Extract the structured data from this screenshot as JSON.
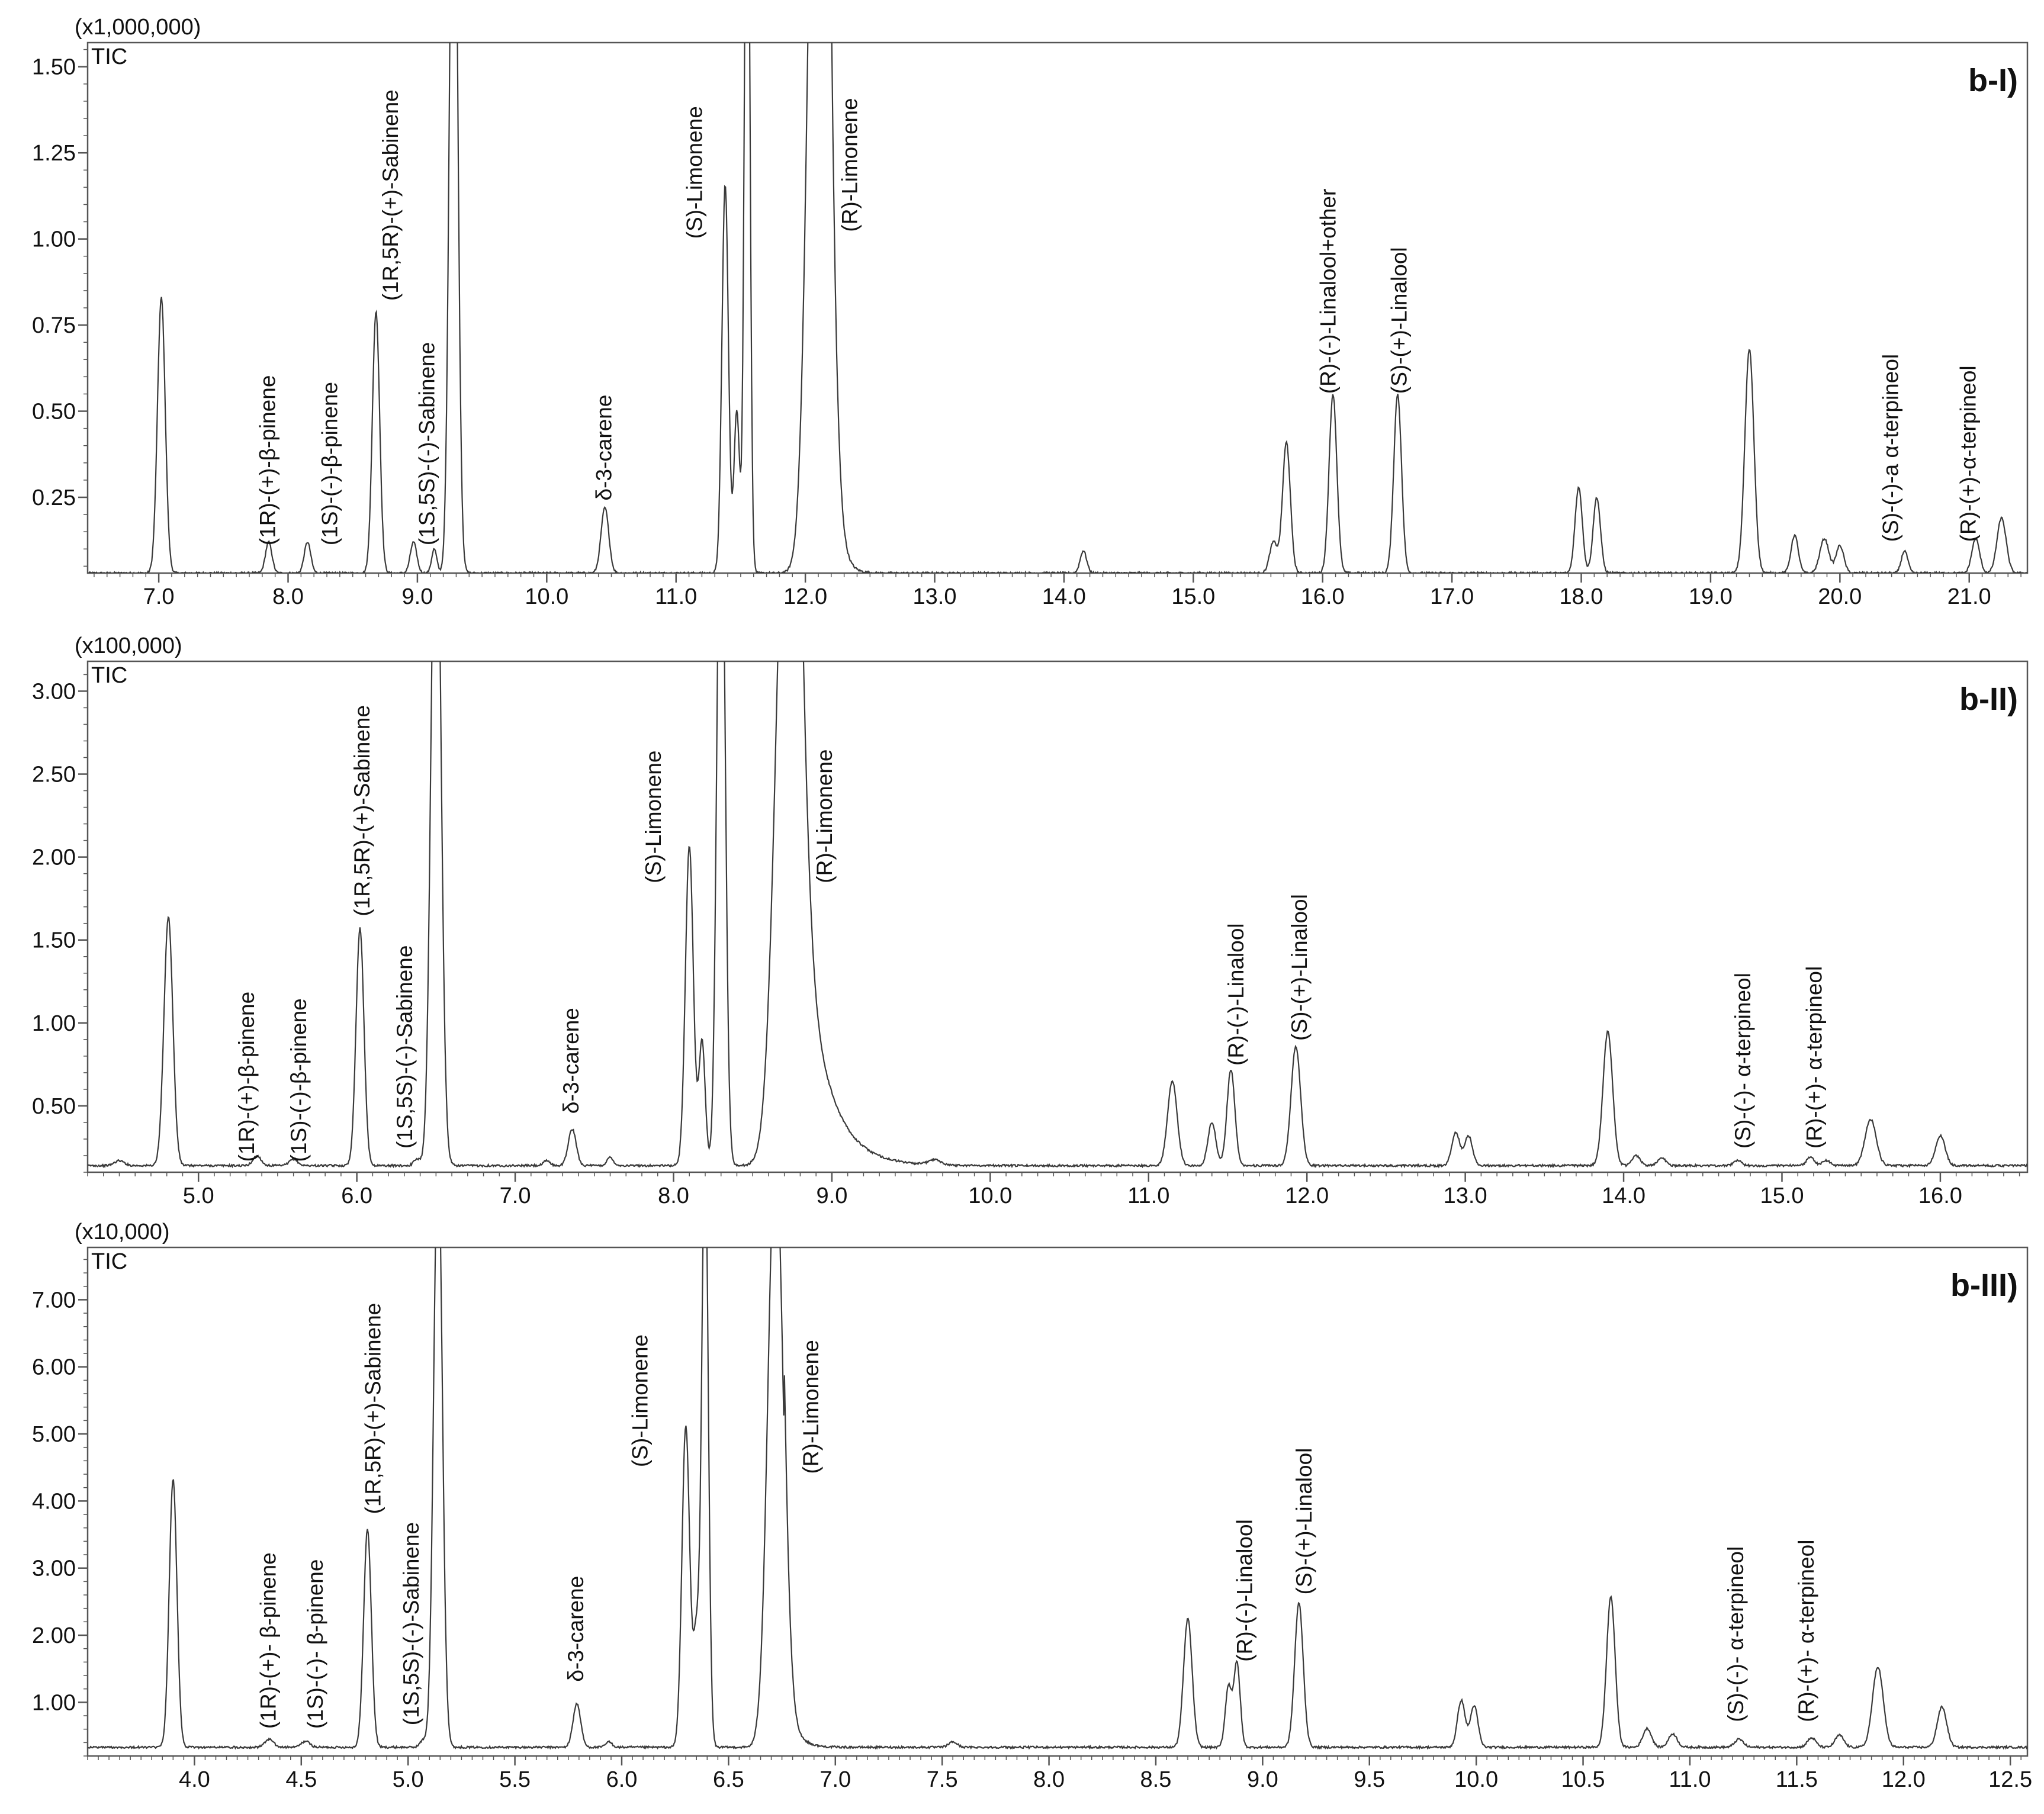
{
  "colors": {
    "trace": "#3a3a3a",
    "axis": "#555555",
    "text": "#111111",
    "background": "#ffffff"
  },
  "chart_data": [
    {
      "type": "line",
      "panel_label": "b-I)",
      "signal_label": "TIC",
      "multiplier_label": "(x1,000,000)",
      "scale": 1000000,
      "xlim": [
        6.45,
        21.45
      ],
      "ylim": [
        0.03,
        1.57
      ],
      "xticks": [
        7.0,
        8.0,
        9.0,
        10.0,
        11.0,
        12.0,
        13.0,
        14.0,
        15.0,
        16.0,
        17.0,
        18.0,
        19.0,
        20.0,
        21.0
      ],
      "yticks": [
        0.25,
        0.5,
        0.75,
        1.0,
        1.25,
        1.5
      ],
      "baseline": 0.03,
      "peaks": [
        {
          "rt": 7.02,
          "h": 0.8,
          "w": 0.03
        },
        {
          "rt": 7.85,
          "h": 0.09,
          "w": 0.025
        },
        {
          "rt": 8.15,
          "h": 0.09,
          "w": 0.025
        },
        {
          "rt": 8.68,
          "h": 0.76,
          "w": 0.028
        },
        {
          "rt": 8.97,
          "h": 0.09,
          "w": 0.025
        },
        {
          "rt": 9.13,
          "h": 0.07,
          "w": 0.02
        },
        {
          "rt": 9.28,
          "h": 2.5,
          "w": 0.03
        },
        {
          "rt": 10.45,
          "h": 0.19,
          "w": 0.03
        },
        {
          "rt": 11.38,
          "h": 1.13,
          "w": 0.025
        },
        {
          "rt": 11.47,
          "h": 0.47,
          "w": 0.022
        },
        {
          "rt": 11.55,
          "h": 2.5,
          "w": 0.02
        },
        {
          "rt": 12.1,
          "h": 3.0,
          "w": 0.07
        },
        {
          "rt": 14.15,
          "h": 0.065,
          "w": 0.025
        },
        {
          "rt": 15.62,
          "h": 0.09,
          "w": 0.03
        },
        {
          "rt": 15.72,
          "h": 0.38,
          "w": 0.03
        },
        {
          "rt": 16.08,
          "h": 0.52,
          "w": 0.03
        },
        {
          "rt": 16.58,
          "h": 0.52,
          "w": 0.03
        },
        {
          "rt": 17.98,
          "h": 0.25,
          "w": 0.028
        },
        {
          "rt": 18.12,
          "h": 0.22,
          "w": 0.028
        },
        {
          "rt": 19.3,
          "h": 0.65,
          "w": 0.035
        },
        {
          "rt": 19.65,
          "h": 0.11,
          "w": 0.028
        },
        {
          "rt": 19.88,
          "h": 0.1,
          "w": 0.035
        },
        {
          "rt": 20.0,
          "h": 0.08,
          "w": 0.03
        },
        {
          "rt": 20.5,
          "h": 0.065,
          "w": 0.025
        },
        {
          "rt": 21.05,
          "h": 0.1,
          "w": 0.03
        },
        {
          "rt": 21.25,
          "h": 0.16,
          "w": 0.035
        }
      ],
      "tail": {
        "rt": 12.18,
        "h": 0.9,
        "decay": 0.05
      },
      "annotations": [
        {
          "text": "(1R)-(+)-β-pinene",
          "rt": 7.9,
          "y": 0.09
        },
        {
          "text": "(1S)-(-)-β-pinene",
          "rt": 8.38,
          "y": 0.09
        },
        {
          "text": "(1R,5R)-(+)-Sabinene",
          "rt": 8.85,
          "y": 0.8
        },
        {
          "text": "(1S,5S)-(-)-Sabinene",
          "rt": 9.13,
          "y": 0.09
        },
        {
          "text": "δ-3-carene",
          "rt": 10.5,
          "y": 0.22
        },
        {
          "text": "(S)-Limonene",
          "rt": 11.2,
          "y": 0.98
        },
        {
          "text": "(R)-Limonene",
          "rt": 12.4,
          "y": 1.0
        },
        {
          "text": "(R)-(-)-Linalool+other",
          "rt": 16.1,
          "y": 0.53
        },
        {
          "text": "(S)-(+)-Linalool",
          "rt": 16.65,
          "y": 0.53
        },
        {
          "text": "(S)-(-)-a α-terpineol",
          "rt": 20.45,
          "y": 0.1
        },
        {
          "text": "(R)-(+)-α-terpineol",
          "rt": 21.05,
          "y": 0.1
        }
      ]
    },
    {
      "type": "line",
      "panel_label": "b-II)",
      "signal_label": "TIC",
      "multiplier_label": "(x100,000)",
      "scale": 100000,
      "xlim": [
        4.3,
        16.55
      ],
      "ylim": [
        0.1,
        3.18
      ],
      "xticks": [
        5.0,
        6.0,
        7.0,
        8.0,
        9.0,
        10.0,
        11.0,
        12.0,
        13.0,
        14.0,
        15.0,
        16.0
      ],
      "yticks": [
        0.5,
        1.0,
        1.5,
        2.0,
        2.5,
        3.0
      ],
      "baseline": 0.14,
      "peaks": [
        {
          "rt": 4.5,
          "h": 0.03,
          "w": 0.03
        },
        {
          "rt": 4.81,
          "h": 1.5,
          "w": 0.028
        },
        {
          "rt": 5.37,
          "h": 0.06,
          "w": 0.025
        },
        {
          "rt": 5.6,
          "h": 0.04,
          "w": 0.025
        },
        {
          "rt": 6.02,
          "h": 1.43,
          "w": 0.025
        },
        {
          "rt": 6.38,
          "h": 0.04,
          "w": 0.02
        },
        {
          "rt": 6.5,
          "h": 4.5,
          "w": 0.03
        },
        {
          "rt": 7.2,
          "h": 0.03,
          "w": 0.02
        },
        {
          "rt": 7.36,
          "h": 0.22,
          "w": 0.025
        },
        {
          "rt": 7.6,
          "h": 0.05,
          "w": 0.02
        },
        {
          "rt": 8.1,
          "h": 1.93,
          "w": 0.025
        },
        {
          "rt": 8.18,
          "h": 0.75,
          "w": 0.02
        },
        {
          "rt": 8.3,
          "h": 4.5,
          "w": 0.025
        },
        {
          "rt": 8.72,
          "h": 4.5,
          "w": 0.07
        },
        {
          "rt": 9.65,
          "h": 0.03,
          "w": 0.04
        },
        {
          "rt": 11.15,
          "h": 0.51,
          "w": 0.03
        },
        {
          "rt": 11.4,
          "h": 0.26,
          "w": 0.025
        },
        {
          "rt": 11.52,
          "h": 0.58,
          "w": 0.025
        },
        {
          "rt": 11.93,
          "h": 0.72,
          "w": 0.03
        },
        {
          "rt": 12.94,
          "h": 0.2,
          "w": 0.025
        },
        {
          "rt": 13.02,
          "h": 0.18,
          "w": 0.025
        },
        {
          "rt": 13.9,
          "h": 0.81,
          "w": 0.03
        },
        {
          "rt": 14.08,
          "h": 0.06,
          "w": 0.025
        },
        {
          "rt": 14.24,
          "h": 0.05,
          "w": 0.025
        },
        {
          "rt": 14.72,
          "h": 0.03,
          "w": 0.025
        },
        {
          "rt": 15.18,
          "h": 0.05,
          "w": 0.025
        },
        {
          "rt": 15.28,
          "h": 0.03,
          "w": 0.025
        },
        {
          "rt": 15.56,
          "h": 0.28,
          "w": 0.035
        },
        {
          "rt": 16.0,
          "h": 0.18,
          "w": 0.03
        }
      ],
      "tail": {
        "rt": 8.78,
        "h": 1.9,
        "decay": 0.15
      },
      "annotations": [
        {
          "text": "(1R)-(+)-β-pinene",
          "rt": 5.35,
          "y": 0.12
        },
        {
          "text": "(1S)-(-)-β-pinene",
          "rt": 5.68,
          "y": 0.12
        },
        {
          "text": "(1R,5R)-(+)-Sabinene",
          "rt": 6.08,
          "y": 1.6
        },
        {
          "text": "(1S,5S)-(-)-Sabinene",
          "rt": 6.35,
          "y": 0.2
        },
        {
          "text": "δ-3-carene",
          "rt": 7.4,
          "y": 0.41
        },
        {
          "text": "(S)-Limonene",
          "rt": 7.92,
          "y": 1.8
        },
        {
          "text": "(R)-Limonene",
          "rt": 9.0,
          "y": 1.8
        },
        {
          "text": "(R)-(-)-Linalool",
          "rt": 11.6,
          "y": 0.7
        },
        {
          "text": "(S)-(+)-Linalool",
          "rt": 12.0,
          "y": 0.85
        },
        {
          "text": "(S)-(-)- α-terpineol",
          "rt": 14.8,
          "y": 0.2
        },
        {
          "text": "(R)-(+)- α-terpineol",
          "rt": 15.25,
          "y": 0.2
        }
      ]
    },
    {
      "type": "line",
      "panel_label": "b-III)",
      "signal_label": "TIC",
      "multiplier_label": "(x10,000)",
      "scale": 10000,
      "xlim": [
        3.5,
        12.58
      ],
      "ylim": [
        0.2,
        7.78
      ],
      "xticks": [
        4.0,
        4.5,
        5.0,
        5.5,
        6.0,
        6.5,
        7.0,
        7.5,
        8.0,
        8.5,
        9.0,
        9.5,
        10.0,
        10.5,
        11.0,
        11.5,
        12.0,
        12.5
      ],
      "yticks": [
        1.0,
        2.0,
        3.0,
        4.0,
        5.0,
        6.0,
        7.0
      ],
      "baseline": 0.33,
      "peaks": [
        {
          "rt": 3.9,
          "h": 4.0,
          "w": 0.018
        },
        {
          "rt": 4.35,
          "h": 0.12,
          "w": 0.02
        },
        {
          "rt": 4.52,
          "h": 0.09,
          "w": 0.02
        },
        {
          "rt": 4.81,
          "h": 3.25,
          "w": 0.018
        },
        {
          "rt": 5.07,
          "h": 0.1,
          "w": 0.015
        },
        {
          "rt": 5.14,
          "h": 9.0,
          "w": 0.02
        },
        {
          "rt": 5.79,
          "h": 0.65,
          "w": 0.018
        },
        {
          "rt": 5.94,
          "h": 0.08,
          "w": 0.015
        },
        {
          "rt": 6.3,
          "h": 4.8,
          "w": 0.018
        },
        {
          "rt": 6.35,
          "h": 1.65,
          "w": 0.015
        },
        {
          "rt": 6.39,
          "h": 9.0,
          "w": 0.015
        },
        {
          "rt": 6.72,
          "h": 9.0,
          "w": 0.035
        },
        {
          "rt": 7.55,
          "h": 0.08,
          "w": 0.02
        },
        {
          "rt": 8.65,
          "h": 1.92,
          "w": 0.02
        },
        {
          "rt": 8.84,
          "h": 0.9,
          "w": 0.015
        },
        {
          "rt": 8.88,
          "h": 1.25,
          "w": 0.015
        },
        {
          "rt": 9.17,
          "h": 2.15,
          "w": 0.02
        },
        {
          "rt": 9.93,
          "h": 0.7,
          "w": 0.018
        },
        {
          "rt": 9.99,
          "h": 0.62,
          "w": 0.018
        },
        {
          "rt": 10.63,
          "h": 2.25,
          "w": 0.02
        },
        {
          "rt": 10.8,
          "h": 0.28,
          "w": 0.02
        },
        {
          "rt": 10.92,
          "h": 0.2,
          "w": 0.02
        },
        {
          "rt": 11.23,
          "h": 0.12,
          "w": 0.02
        },
        {
          "rt": 11.57,
          "h": 0.14,
          "w": 0.02
        },
        {
          "rt": 11.7,
          "h": 0.18,
          "w": 0.02
        },
        {
          "rt": 11.88,
          "h": 1.2,
          "w": 0.025
        },
        {
          "rt": 12.18,
          "h": 0.6,
          "w": 0.022
        }
      ],
      "tail": {
        "rt": 6.76,
        "h": 1.2,
        "decay": 0.04
      },
      "annotations": [
        {
          "text": "(1R)-(+)- β-pinene",
          "rt": 4.38,
          "y": 0.5
        },
        {
          "text": "(1S)-(-)- β-pinene",
          "rt": 4.6,
          "y": 0.5
        },
        {
          "text": "(1R,5R)-(+)-Sabinene",
          "rt": 4.87,
          "y": 3.7
        },
        {
          "text": "(1S,5S)-(-)-Sabinene",
          "rt": 5.05,
          "y": 0.55
        },
        {
          "text": "δ-3-carene",
          "rt": 5.82,
          "y": 1.2
        },
        {
          "text": "(S)-Limonene",
          "rt": 6.12,
          "y": 4.4
        },
        {
          "text": "(R)-Limonene",
          "rt": 6.92,
          "y": 4.3
        },
        {
          "text": "(R)-(-)-Linalool",
          "rt": 8.95,
          "y": 1.5
        },
        {
          "text": "(S)-(+)-Linalool",
          "rt": 9.23,
          "y": 2.5
        },
        {
          "text": "(S)-(-)- α-terpineol",
          "rt": 11.25,
          "y": 0.6
        },
        {
          "text": "(R)-(+)- α-terpineol",
          "rt": 11.58,
          "y": 0.6
        }
      ]
    }
  ]
}
